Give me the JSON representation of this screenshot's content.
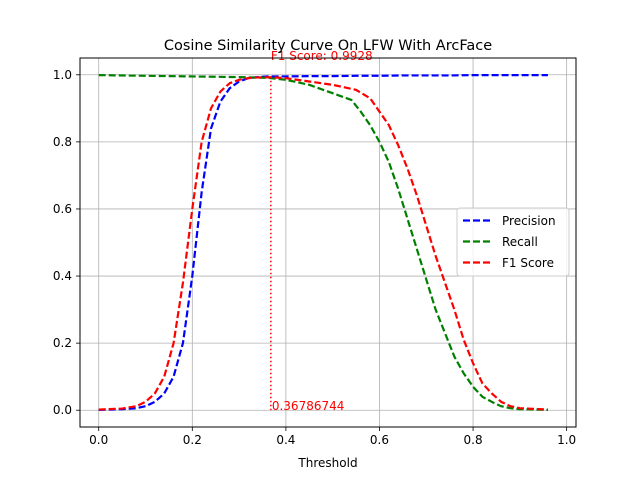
{
  "chart_data": {
    "type": "line",
    "title": "Cosine Similarity Curve On LFW With ArcFace",
    "xlabel": "Threshold",
    "ylabel": "",
    "xlim": [
      -0.04,
      1.02
    ],
    "ylim": [
      -0.05,
      1.05
    ],
    "xticks": [
      0.0,
      0.2,
      0.4,
      0.6,
      0.8,
      1.0
    ],
    "xtick_labels": [
      "0.0",
      "0.2",
      "0.4",
      "0.6",
      "0.8",
      "1.0"
    ],
    "yticks": [
      0.0,
      0.2,
      0.4,
      0.6,
      0.8,
      1.0
    ],
    "ytick_labels": [
      "0.0",
      "0.2",
      "0.4",
      "0.6",
      "0.8",
      "1.0"
    ],
    "grid": true,
    "legend": "center-right",
    "series": [
      {
        "name": "Precision",
        "color": "#0000ff",
        "style": "dashed",
        "x": [
          0.0,
          0.05,
          0.08,
          0.1,
          0.12,
          0.14,
          0.16,
          0.18,
          0.2,
          0.22,
          0.24,
          0.26,
          0.28,
          0.3,
          0.32,
          0.34,
          0.36,
          0.4,
          0.45,
          0.5,
          0.55,
          0.6,
          0.65,
          0.7,
          0.75,
          0.8,
          0.85,
          0.9,
          0.96
        ],
        "y": [
          0.001,
          0.003,
          0.006,
          0.012,
          0.025,
          0.05,
          0.1,
          0.2,
          0.4,
          0.65,
          0.84,
          0.92,
          0.96,
          0.98,
          0.99,
          0.993,
          0.995,
          0.995,
          0.996,
          0.996,
          0.997,
          0.997,
          0.998,
          0.998,
          0.998,
          0.999,
          0.999,
          0.999,
          0.999
        ]
      },
      {
        "name": "Recall",
        "color": "#008000",
        "style": "dashed",
        "x": [
          0.0,
          0.1,
          0.2,
          0.3,
          0.36,
          0.4,
          0.45,
          0.5,
          0.54,
          0.56,
          0.58,
          0.6,
          0.62,
          0.64,
          0.66,
          0.68,
          0.7,
          0.72,
          0.74,
          0.76,
          0.78,
          0.8,
          0.82,
          0.84,
          0.86,
          0.88,
          0.9,
          0.96
        ],
        "y": [
          0.999,
          0.997,
          0.995,
          0.993,
          0.991,
          0.985,
          0.97,
          0.945,
          0.925,
          0.89,
          0.85,
          0.8,
          0.74,
          0.66,
          0.57,
          0.48,
          0.39,
          0.3,
          0.23,
          0.16,
          0.11,
          0.07,
          0.04,
          0.025,
          0.012,
          0.006,
          0.003,
          0.001
        ]
      },
      {
        "name": "F1 Score",
        "color": "#ff0000",
        "style": "dashed",
        "x": [
          0.0,
          0.05,
          0.08,
          0.1,
          0.12,
          0.14,
          0.16,
          0.18,
          0.2,
          0.22,
          0.24,
          0.26,
          0.28,
          0.3,
          0.32,
          0.34,
          0.36786744,
          0.4,
          0.45,
          0.5,
          0.55,
          0.58,
          0.6,
          0.62,
          0.64,
          0.66,
          0.68,
          0.7,
          0.72,
          0.74,
          0.76,
          0.78,
          0.8,
          0.82,
          0.84,
          0.86,
          0.88,
          0.9,
          0.96
        ],
        "y": [
          0.002,
          0.005,
          0.012,
          0.025,
          0.05,
          0.1,
          0.2,
          0.38,
          0.6,
          0.8,
          0.9,
          0.95,
          0.975,
          0.985,
          0.99,
          0.992,
          0.9928,
          0.99,
          0.98,
          0.97,
          0.955,
          0.93,
          0.89,
          0.85,
          0.79,
          0.72,
          0.64,
          0.55,
          0.46,
          0.38,
          0.3,
          0.21,
          0.14,
          0.08,
          0.05,
          0.025,
          0.012,
          0.006,
          0.002
        ]
      }
    ],
    "annotations": {
      "vline_x": 0.36786744,
      "color": "#ff0000",
      "top_text": "F1 Score: 0.9928",
      "bottom_text": "0.36786744"
    }
  }
}
